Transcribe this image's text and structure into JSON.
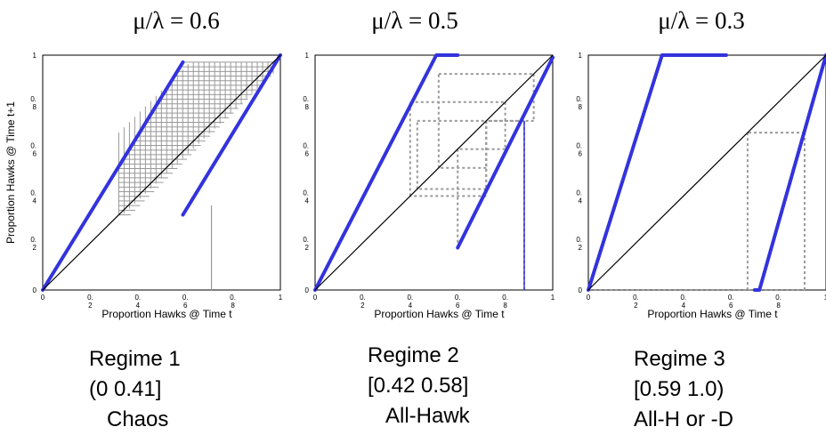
{
  "chart_data": [
    {
      "type": "line",
      "title": "μ/λ = 0.6",
      "xlabel": "Proportion Hawks @ Time t",
      "ylabel": "Proportion Hawks @ Time t+1",
      "xlim": [
        0,
        1
      ],
      "ylim": [
        0,
        1
      ],
      "x_ticks": [
        "0",
        "0.\n2",
        "0.\n4",
        "0.\n6",
        "0.\n8",
        "1"
      ],
      "y_ticks": [
        "0",
        "0.\n2",
        "0.\n4",
        "0.\n6",
        "0.\n8",
        "1"
      ],
      "colors": {
        "map": "#3333dd",
        "diagonal": "#000000",
        "cobweb": "#999999"
      },
      "cobweb_style": "solid",
      "series": [
        {
          "type": "map",
          "points": [
            [
              0,
              0
            ],
            [
              0.59,
              0.97
            ]
          ]
        },
        {
          "type": "map",
          "points": [
            [
              0.59,
              0.32
            ],
            [
              1.0,
              1.0
            ]
          ]
        },
        {
          "type": "diagonal",
          "points": [
            [
              0,
              0
            ],
            [
              1,
              1
            ]
          ]
        }
      ],
      "cobweb": {
        "kind": "chaos",
        "x_range": [
          0.32,
          0.97
        ],
        "y_range": [
          0.32,
          0.97
        ],
        "start_x": 0.71
      },
      "regime": {
        "line1": "Regime 1",
        "line2": "(0 0.41]",
        "line3": "Chaos"
      }
    },
    {
      "type": "line",
      "title": "μ/λ = 0.5",
      "xlabel": "Proportion Hawks @ Time t",
      "ylabel": "",
      "xlim": [
        0,
        1
      ],
      "ylim": [
        0,
        1
      ],
      "x_ticks": [
        "0",
        "0.\n2",
        "0.\n4",
        "0.\n6",
        "0.\n8",
        "1"
      ],
      "y_ticks": [
        "0",
        "0.\n2",
        "0.\n4",
        "0.\n6",
        "0.\n8",
        "1"
      ],
      "colors": {
        "map": "#3333dd",
        "diagonal": "#000000",
        "cobweb": "#999999"
      },
      "cobweb_style": "dotted",
      "series": [
        {
          "type": "map",
          "points": [
            [
              0,
              0
            ],
            [
              0.51,
              1.0
            ],
            [
              0.6,
              1.0
            ]
          ]
        },
        {
          "type": "map",
          "points": [
            [
              0.6,
              0.18
            ],
            [
              1.0,
              0.99
            ]
          ]
        },
        {
          "type": "diagonal",
          "points": [
            [
              0,
              0
            ],
            [
              1,
              1
            ]
          ]
        }
      ],
      "cobweb": {
        "kind": "path",
        "start_x": 0.88,
        "path": [
          [
            0.88,
            0
          ],
          [
            0.88,
            0.72
          ],
          [
            0.72,
            0.72
          ],
          [
            0.72,
            0.43
          ],
          [
            0.43,
            0.43
          ],
          [
            0.43,
            0.72
          ],
          [
            0.72,
            0.72
          ],
          [
            0.72,
            0.52
          ],
          [
            0.52,
            0.52
          ],
          [
            0.52,
            0.92
          ],
          [
            0.92,
            0.92
          ],
          [
            0.92,
            0.72
          ],
          [
            0.72,
            0.72
          ],
          [
            0.72,
            0.4
          ],
          [
            0.4,
            0.4
          ],
          [
            0.4,
            0.8
          ],
          [
            0.8,
            0.8
          ],
          [
            0.8,
            0.6
          ],
          [
            0.6,
            0.6
          ],
          [
            0.6,
            0.2
          ]
        ]
      },
      "regime": {
        "line1": "Regime 2",
        "line2": "[0.42 0.58]",
        "line3": "All-Hawk"
      }
    },
    {
      "type": "line",
      "title": "μ/λ = 0.3",
      "xlabel": "Proportion Hawks @ Time t",
      "ylabel": "",
      "xlim": [
        0,
        1
      ],
      "ylim": [
        0,
        1
      ],
      "x_ticks": [
        "0",
        "0.\n2",
        "0.\n4",
        "0.\n6",
        "0.\n8",
        "1"
      ],
      "y_ticks": [
        "0",
        "0.\n2",
        "0.\n4",
        "0.\n6",
        "0.\n8",
        "1"
      ],
      "colors": {
        "map": "#3333dd",
        "diagonal": "#000000",
        "cobweb": "#999999"
      },
      "cobweb_style": "dotted",
      "series": [
        {
          "type": "map",
          "points": [
            [
              0,
              0
            ],
            [
              0.31,
              1.0
            ],
            [
              0.58,
              1.0
            ]
          ]
        },
        {
          "type": "map",
          "points": [
            [
              0.7,
              0
            ],
            [
              0.72,
              0.0
            ],
            [
              1.0,
              1.0
            ]
          ]
        },
        {
          "type": "diagonal",
          "points": [
            [
              0,
              0
            ],
            [
              1,
              1
            ]
          ]
        }
      ],
      "cobweb": {
        "kind": "path",
        "start_x": 0.91,
        "path": [
          [
            0,
            0
          ],
          [
            0.91,
            0
          ],
          [
            0.91,
            0.67
          ],
          [
            0.67,
            0.67
          ],
          [
            0.67,
            0
          ]
        ]
      },
      "regime": {
        "line1": "Regime 3",
        "line2": "[0.59 1.0)",
        "line3": "All-H or -D"
      }
    }
  ]
}
